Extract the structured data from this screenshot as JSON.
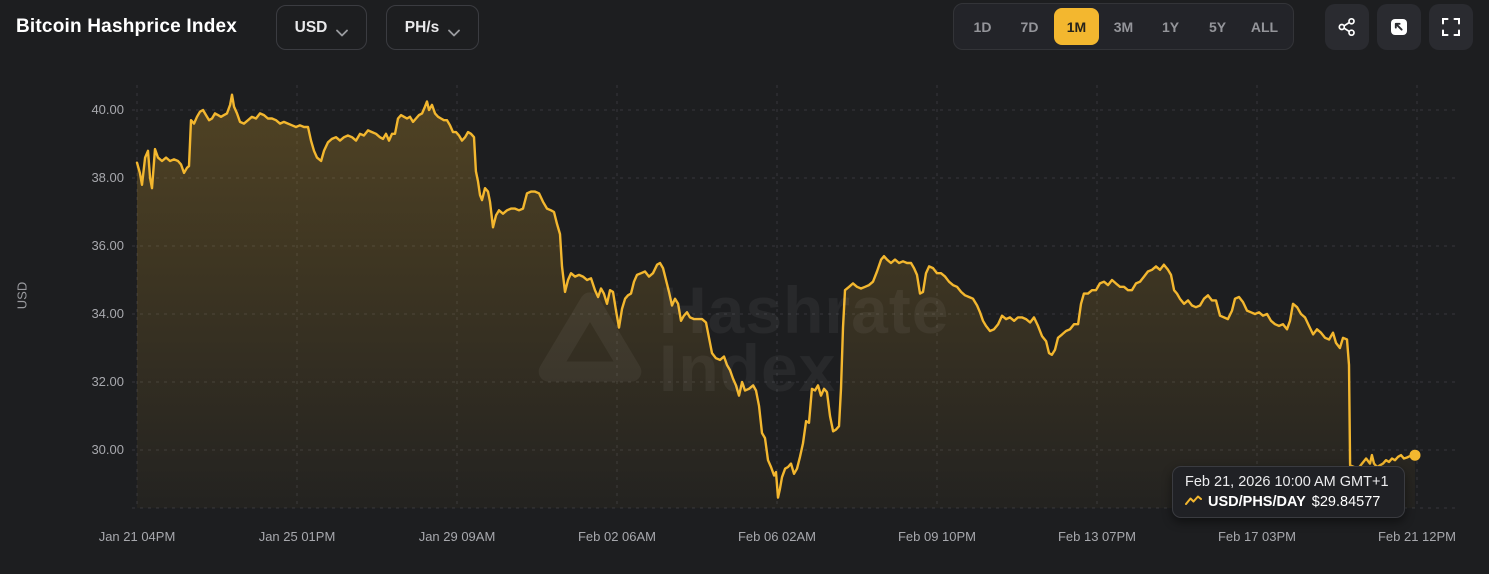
{
  "header": {
    "title": "Bitcoin Hashprice Index",
    "currency_selector": {
      "value": "USD"
    },
    "unit_selector": {
      "value": "PH/s"
    },
    "range_buttons": [
      "1D",
      "7D",
      "1M",
      "3M",
      "1Y",
      "5Y",
      "ALL"
    ],
    "active_range": "1M",
    "action_icons": [
      "share",
      "save-image",
      "fullscreen"
    ]
  },
  "tooltip": {
    "datetime": "Feb 21, 2026 10:00 AM GMT+1",
    "series_label": "USD/PHS/DAY",
    "value": "$29.84577"
  },
  "colors": {
    "background": "#1d1e20",
    "accent_gold": "#f3b72f",
    "grid": "#36373c",
    "axis_text": "#a7a8ad"
  },
  "chart_data": {
    "type": "area",
    "title": "Bitcoin Hashprice Index",
    "series_name": "USD/PHS/DAY",
    "xlabel": "",
    "ylabel": "USD",
    "ylim": [
      28.2,
      40.8
    ],
    "grid": "dashed",
    "legend": "none",
    "line_color": "#f3b72f",
    "watermark": {
      "line1": "Hashrate",
      "line2": "Index"
    },
    "y_ticks": [
      "40.00",
      "38.00",
      "36.00",
      "34.00",
      "32.00",
      "30.00"
    ],
    "x_ticks": [
      "Jan 21 04PM",
      "Jan 25 01PM",
      "Jan 29 09AM",
      "Feb 02 06AM",
      "Feb 06 02AM",
      "Feb 09 10PM",
      "Feb 13 07PM",
      "Feb 17 03PM",
      "Feb 21 12PM"
    ],
    "last_point": {
      "t": 0.9984,
      "value": 29.84577
    },
    "points": [
      [
        0.0,
        38.45
      ],
      [
        0.0023,
        38.15
      ],
      [
        0.0039,
        37.8
      ],
      [
        0.0063,
        38.6
      ],
      [
        0.0086,
        38.8
      ],
      [
        0.0102,
        38.0
      ],
      [
        0.0117,
        37.7
      ],
      [
        0.0141,
        38.85
      ],
      [
        0.0164,
        38.6
      ],
      [
        0.0195,
        38.5
      ],
      [
        0.0227,
        38.6
      ],
      [
        0.0258,
        38.5
      ],
      [
        0.0289,
        38.55
      ],
      [
        0.032,
        38.5
      ],
      [
        0.0344,
        38.4
      ],
      [
        0.0367,
        38.15
      ],
      [
        0.0391,
        38.3
      ],
      [
        0.0406,
        38.35
      ],
      [
        0.0422,
        39.7
      ],
      [
        0.0445,
        39.6
      ],
      [
        0.0469,
        39.8
      ],
      [
        0.0492,
        39.95
      ],
      [
        0.0516,
        40.0
      ],
      [
        0.0539,
        39.85
      ],
      [
        0.0563,
        39.7
      ],
      [
        0.0586,
        39.75
      ],
      [
        0.0609,
        39.9
      ],
      [
        0.0633,
        39.85
      ],
      [
        0.0656,
        39.8
      ],
      [
        0.068,
        39.85
      ],
      [
        0.0703,
        39.9
      ],
      [
        0.0727,
        40.15
      ],
      [
        0.0742,
        40.45
      ],
      [
        0.0758,
        40.1
      ],
      [
        0.0781,
        39.9
      ],
      [
        0.0805,
        39.65
      ],
      [
        0.0836,
        39.6
      ],
      [
        0.0867,
        39.7
      ],
      [
        0.0898,
        39.8
      ],
      [
        0.093,
        39.75
      ],
      [
        0.0961,
        39.9
      ],
      [
        0.0992,
        39.85
      ],
      [
        0.1023,
        39.75
      ],
      [
        0.1055,
        39.75
      ],
      [
        0.1086,
        39.7
      ],
      [
        0.1117,
        39.6
      ],
      [
        0.1148,
        39.65
      ],
      [
        0.118,
        39.6
      ],
      [
        0.1211,
        39.55
      ],
      [
        0.1242,
        39.5
      ],
      [
        0.1273,
        39.55
      ],
      [
        0.1305,
        39.5
      ],
      [
        0.1336,
        39.5
      ],
      [
        0.1359,
        39.1
      ],
      [
        0.1383,
        38.8
      ],
      [
        0.1406,
        38.6
      ],
      [
        0.1438,
        38.5
      ],
      [
        0.1461,
        38.8
      ],
      [
        0.1492,
        39.05
      ],
      [
        0.1523,
        39.15
      ],
      [
        0.1555,
        39.2
      ],
      [
        0.1586,
        39.1
      ],
      [
        0.1617,
        39.2
      ],
      [
        0.1648,
        39.25
      ],
      [
        0.168,
        39.2
      ],
      [
        0.1711,
        39.1
      ],
      [
        0.1742,
        39.3
      ],
      [
        0.1773,
        39.25
      ],
      [
        0.1805,
        39.4
      ],
      [
        0.1836,
        39.35
      ],
      [
        0.1867,
        39.3
      ],
      [
        0.1898,
        39.2
      ],
      [
        0.1922,
        39.15
      ],
      [
        0.1945,
        39.3
      ],
      [
        0.1969,
        39.1
      ],
      [
        0.1992,
        39.3
      ],
      [
        0.2016,
        39.3
      ],
      [
        0.2039,
        39.75
      ],
      [
        0.2063,
        39.85
      ],
      [
        0.2086,
        39.8
      ],
      [
        0.2109,
        39.75
      ],
      [
        0.2133,
        39.8
      ],
      [
        0.2156,
        39.65
      ],
      [
        0.218,
        39.75
      ],
      [
        0.2203,
        39.85
      ],
      [
        0.2227,
        39.9
      ],
      [
        0.225,
        40.1
      ],
      [
        0.2266,
        40.25
      ],
      [
        0.2281,
        40.0
      ],
      [
        0.2305,
        40.15
      ],
      [
        0.2328,
        39.9
      ],
      [
        0.2352,
        39.8
      ],
      [
        0.2375,
        39.75
      ],
      [
        0.2398,
        39.7
      ],
      [
        0.2422,
        39.7
      ],
      [
        0.2445,
        39.55
      ],
      [
        0.2469,
        39.35
      ],
      [
        0.2492,
        39.35
      ],
      [
        0.2516,
        39.25
      ],
      [
        0.2539,
        39.1
      ],
      [
        0.2563,
        39.2
      ],
      [
        0.2586,
        39.35
      ],
      [
        0.2609,
        39.3
      ],
      [
        0.2633,
        39.2
      ],
      [
        0.2648,
        38.2
      ],
      [
        0.2664,
        37.9
      ],
      [
        0.268,
        37.5
      ],
      [
        0.2695,
        37.35
      ],
      [
        0.2719,
        37.7
      ],
      [
        0.2742,
        37.6
      ],
      [
        0.2758,
        37.3
      ],
      [
        0.2781,
        36.55
      ],
      [
        0.2805,
        36.9
      ],
      [
        0.2828,
        37.05
      ],
      [
        0.2859,
        36.95
      ],
      [
        0.2891,
        37.05
      ],
      [
        0.2922,
        37.1
      ],
      [
        0.2953,
        37.1
      ],
      [
        0.2984,
        37.05
      ],
      [
        0.3016,
        37.1
      ],
      [
        0.3047,
        37.55
      ],
      [
        0.3078,
        37.6
      ],
      [
        0.3109,
        37.6
      ],
      [
        0.3141,
        37.55
      ],
      [
        0.3172,
        37.3
      ],
      [
        0.3203,
        37.1
      ],
      [
        0.3234,
        37.05
      ],
      [
        0.3258,
        37.0
      ],
      [
        0.3281,
        36.65
      ],
      [
        0.3305,
        36.35
      ],
      [
        0.332,
        35.4
      ],
      [
        0.3344,
        34.65
      ],
      [
        0.3367,
        35.0
      ],
      [
        0.3391,
        35.2
      ],
      [
        0.3422,
        35.1
      ],
      [
        0.3453,
        35.15
      ],
      [
        0.3484,
        35.1
      ],
      [
        0.3516,
        35.0
      ],
      [
        0.3547,
        35.05
      ],
      [
        0.3578,
        34.7
      ],
      [
        0.3602,
        34.5
      ],
      [
        0.3625,
        34.75
      ],
      [
        0.3648,
        34.6
      ],
      [
        0.3672,
        34.3
      ],
      [
        0.3695,
        34.7
      ],
      [
        0.3719,
        34.65
      ],
      [
        0.3742,
        34.1
      ],
      [
        0.3766,
        33.6
      ],
      [
        0.3789,
        34.15
      ],
      [
        0.3813,
        34.45
      ],
      [
        0.3836,
        34.55
      ],
      [
        0.3859,
        34.6
      ],
      [
        0.3883,
        34.95
      ],
      [
        0.3906,
        35.15
      ],
      [
        0.3938,
        35.2
      ],
      [
        0.3969,
        35.25
      ],
      [
        0.4,
        35.1
      ],
      [
        0.4031,
        35.2
      ],
      [
        0.4063,
        35.45
      ],
      [
        0.4086,
        35.5
      ],
      [
        0.4109,
        35.35
      ],
      [
        0.4133,
        35.0
      ],
      [
        0.4156,
        34.65
      ],
      [
        0.418,
        34.25
      ],
      [
        0.4203,
        34.45
      ],
      [
        0.4227,
        34.3
      ],
      [
        0.425,
        33.8
      ],
      [
        0.4273,
        33.95
      ],
      [
        0.4297,
        34.05
      ],
      [
        0.432,
        33.9
      ],
      [
        0.4352,
        33.85
      ],
      [
        0.4383,
        33.85
      ],
      [
        0.4414,
        33.85
      ],
      [
        0.4445,
        33.75
      ],
      [
        0.4469,
        33.3
      ],
      [
        0.4492,
        32.85
      ],
      [
        0.4523,
        32.7
      ],
      [
        0.4555,
        32.65
      ],
      [
        0.4586,
        32.75
      ],
      [
        0.4609,
        32.5
      ],
      [
        0.4633,
        32.35
      ],
      [
        0.4656,
        32.1
      ],
      [
        0.468,
        31.9
      ],
      [
        0.4703,
        31.6
      ],
      [
        0.4727,
        32.0
      ],
      [
        0.475,
        31.75
      ],
      [
        0.4781,
        31.8
      ],
      [
        0.4813,
        31.9
      ],
      [
        0.4836,
        31.75
      ],
      [
        0.4859,
        31.3
      ],
      [
        0.4883,
        30.5
      ],
      [
        0.4906,
        30.35
      ],
      [
        0.493,
        29.7
      ],
      [
        0.4953,
        29.5
      ],
      [
        0.4977,
        29.25
      ],
      [
        0.4992,
        29.35
      ],
      [
        0.5008,
        28.6
      ],
      [
        0.5023,
        28.85
      ],
      [
        0.5039,
        29.2
      ],
      [
        0.5063,
        29.45
      ],
      [
        0.5086,
        29.5
      ],
      [
        0.5109,
        29.6
      ],
      [
        0.5133,
        29.3
      ],
      [
        0.5156,
        29.45
      ],
      [
        0.518,
        29.8
      ],
      [
        0.5203,
        30.2
      ],
      [
        0.5227,
        30.85
      ],
      [
        0.525,
        30.8
      ],
      [
        0.5273,
        31.8
      ],
      [
        0.5297,
        31.75
      ],
      [
        0.532,
        31.9
      ],
      [
        0.5344,
        31.6
      ],
      [
        0.5367,
        31.8
      ],
      [
        0.5391,
        31.7
      ],
      [
        0.5414,
        31.0
      ],
      [
        0.5438,
        30.55
      ],
      [
        0.5461,
        30.6
      ],
      [
        0.5484,
        30.7
      ],
      [
        0.55,
        31.8
      ],
      [
        0.5516,
        33.6
      ],
      [
        0.5531,
        34.7
      ],
      [
        0.5563,
        34.8
      ],
      [
        0.5594,
        34.9
      ],
      [
        0.5625,
        34.8
      ],
      [
        0.5656,
        34.75
      ],
      [
        0.5688,
        34.8
      ],
      [
        0.5719,
        34.85
      ],
      [
        0.575,
        34.95
      ],
      [
        0.5781,
        35.25
      ],
      [
        0.5813,
        35.6
      ],
      [
        0.5836,
        35.7
      ],
      [
        0.5859,
        35.6
      ],
      [
        0.5891,
        35.5
      ],
      [
        0.5922,
        35.6
      ],
      [
        0.5953,
        35.5
      ],
      [
        0.5984,
        35.55
      ],
      [
        0.6016,
        35.5
      ],
      [
        0.6047,
        35.5
      ],
      [
        0.607,
        35.35
      ],
      [
        0.6094,
        35.15
      ],
      [
        0.6117,
        34.6
      ],
      [
        0.6141,
        34.65
      ],
      [
        0.6164,
        35.2
      ],
      [
        0.6188,
        35.4
      ],
      [
        0.6219,
        35.35
      ],
      [
        0.625,
        35.2
      ],
      [
        0.6281,
        35.2
      ],
      [
        0.6313,
        35.1
      ],
      [
        0.6344,
        34.95
      ],
      [
        0.6375,
        34.85
      ],
      [
        0.6406,
        34.8
      ],
      [
        0.6438,
        34.65
      ],
      [
        0.6469,
        34.55
      ],
      [
        0.65,
        34.5
      ],
      [
        0.6531,
        34.45
      ],
      [
        0.6563,
        34.25
      ],
      [
        0.6586,
        34.05
      ],
      [
        0.6609,
        33.8
      ],
      [
        0.6633,
        33.65
      ],
      [
        0.6664,
        33.5
      ],
      [
        0.6695,
        33.55
      ],
      [
        0.6727,
        33.7
      ],
      [
        0.6758,
        33.95
      ],
      [
        0.6789,
        33.85
      ],
      [
        0.682,
        33.9
      ],
      [
        0.6852,
        33.8
      ],
      [
        0.6883,
        33.9
      ],
      [
        0.6914,
        33.9
      ],
      [
        0.6945,
        33.85
      ],
      [
        0.6977,
        33.75
      ],
      [
        0.7008,
        33.9
      ],
      [
        0.7039,
        33.65
      ],
      [
        0.707,
        33.35
      ],
      [
        0.7102,
        33.2
      ],
      [
        0.7125,
        32.85
      ],
      [
        0.7148,
        32.8
      ],
      [
        0.7172,
        32.95
      ],
      [
        0.7195,
        33.3
      ],
      [
        0.7227,
        33.4
      ],
      [
        0.7258,
        33.5
      ],
      [
        0.7289,
        33.55
      ],
      [
        0.732,
        33.7
      ],
      [
        0.7352,
        33.7
      ],
      [
        0.7375,
        34.3
      ],
      [
        0.7398,
        34.6
      ],
      [
        0.743,
        34.6
      ],
      [
        0.7461,
        34.7
      ],
      [
        0.7492,
        34.7
      ],
      [
        0.7523,
        34.9
      ],
      [
        0.7555,
        34.95
      ],
      [
        0.7586,
        34.85
      ],
      [
        0.7617,
        35.0
      ],
      [
        0.7648,
        34.9
      ],
      [
        0.768,
        34.8
      ],
      [
        0.7711,
        34.8
      ],
      [
        0.7742,
        34.7
      ],
      [
        0.7773,
        34.7
      ],
      [
        0.7805,
        34.9
      ],
      [
        0.7836,
        34.95
      ],
      [
        0.7867,
        35.1
      ],
      [
        0.7898,
        35.25
      ],
      [
        0.793,
        35.3
      ],
      [
        0.7961,
        35.4
      ],
      [
        0.7992,
        35.3
      ],
      [
        0.8023,
        35.45
      ],
      [
        0.8055,
        35.3
      ],
      [
        0.8078,
        35.15
      ],
      [
        0.8102,
        34.7
      ],
      [
        0.8125,
        34.6
      ],
      [
        0.8148,
        34.45
      ],
      [
        0.818,
        34.3
      ],
      [
        0.8211,
        34.4
      ],
      [
        0.8242,
        34.25
      ],
      [
        0.8273,
        34.2
      ],
      [
        0.8305,
        34.25
      ],
      [
        0.8336,
        34.45
      ],
      [
        0.8367,
        34.55
      ],
      [
        0.8398,
        34.4
      ],
      [
        0.843,
        34.4
      ],
      [
        0.8461,
        33.95
      ],
      [
        0.8492,
        33.9
      ],
      [
        0.8523,
        33.85
      ],
      [
        0.8555,
        34.1
      ],
      [
        0.8578,
        34.45
      ],
      [
        0.8609,
        34.5
      ],
      [
        0.8641,
        34.35
      ],
      [
        0.8672,
        34.1
      ],
      [
        0.8703,
        34.05
      ],
      [
        0.8734,
        34.0
      ],
      [
        0.8766,
        34.05
      ],
      [
        0.8797,
        33.95
      ],
      [
        0.8828,
        34.0
      ],
      [
        0.8859,
        33.8
      ],
      [
        0.8891,
        33.7
      ],
      [
        0.8922,
        33.65
      ],
      [
        0.8953,
        33.7
      ],
      [
        0.8984,
        33.55
      ],
      [
        0.9008,
        33.8
      ],
      [
        0.9031,
        34.3
      ],
      [
        0.9063,
        34.2
      ],
      [
        0.9094,
        34.0
      ],
      [
        0.9125,
        33.9
      ],
      [
        0.9156,
        33.65
      ],
      [
        0.9188,
        33.4
      ],
      [
        0.9219,
        33.55
      ],
      [
        0.925,
        33.45
      ],
      [
        0.9281,
        33.3
      ],
      [
        0.9313,
        33.25
      ],
      [
        0.9344,
        33.45
      ],
      [
        0.9367,
        33.15
      ],
      [
        0.9398,
        33.0
      ],
      [
        0.9422,
        33.3
      ],
      [
        0.9453,
        33.25
      ],
      [
        0.9469,
        32.5
      ],
      [
        0.9477,
        29.55
      ],
      [
        0.9508,
        29.5
      ],
      [
        0.9539,
        29.45
      ],
      [
        0.957,
        29.6
      ],
      [
        0.9602,
        29.75
      ],
      [
        0.9633,
        29.6
      ],
      [
        0.9648,
        29.85
      ],
      [
        0.9664,
        29.6
      ],
      [
        0.9688,
        29.5
      ],
      [
        0.9711,
        29.55
      ],
      [
        0.9734,
        29.6
      ],
      [
        0.9758,
        29.7
      ],
      [
        0.9781,
        29.65
      ],
      [
        0.9805,
        29.75
      ],
      [
        0.9828,
        29.7
      ],
      [
        0.9852,
        29.8
      ],
      [
        0.9875,
        29.85
      ],
      [
        0.9898,
        29.75
      ],
      [
        0.9922,
        29.78
      ],
      [
        0.9945,
        29.82
      ],
      [
        0.9969,
        29.8
      ],
      [
        0.9984,
        29.845
      ]
    ]
  }
}
